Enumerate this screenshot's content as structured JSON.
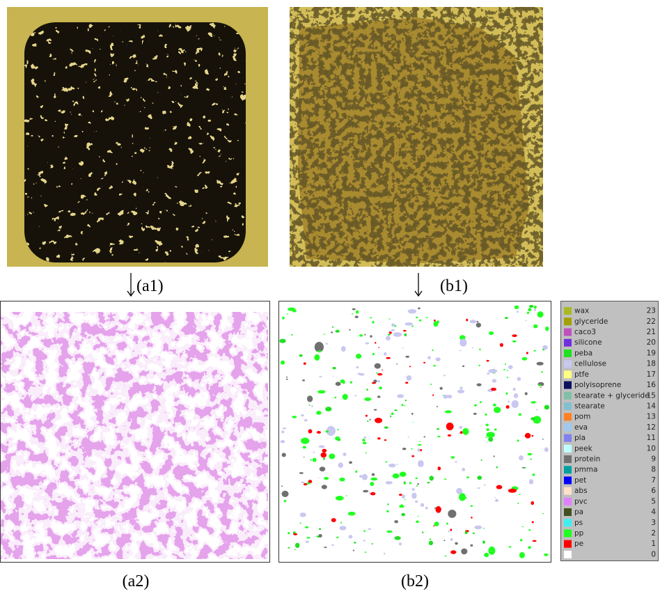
{
  "labels": [
    "(a1)",
    "(b1)",
    "(a2)",
    "(b2)"
  ],
  "legend": {
    "items": [
      {
        "label": "wax",
        "value": 23,
        "color": "#a9b924"
      },
      {
        "label": "glyceride",
        "value": 22,
        "color": "#a3a000"
      },
      {
        "label": "caco3",
        "value": 21,
        "color": "#c050c0"
      },
      {
        "label": "silicone",
        "value": 20,
        "color": "#7030e0"
      },
      {
        "label": "peba",
        "value": 19,
        "color": "#20e020"
      },
      {
        "label": "cellulose",
        "value": 18,
        "color": "#c8c8f0"
      },
      {
        "label": "ptfe",
        "value": 17,
        "color": "#ffff80"
      },
      {
        "label": "polyisoprene",
        "value": 16,
        "color": "#101060"
      },
      {
        "label": "stearate + glyceride",
        "value": 15,
        "color": "#80c0a8"
      },
      {
        "label": "stearate",
        "value": 14,
        "color": "#80c0d0"
      },
      {
        "label": "pom",
        "value": 13,
        "color": "#ff8020"
      },
      {
        "label": "eva",
        "value": 12,
        "color": "#a0c8f0"
      },
      {
        "label": "pla",
        "value": 11,
        "color": "#8080f0"
      },
      {
        "label": "peek",
        "value": 10,
        "color": "#c0ffff"
      },
      {
        "label": "protein",
        "value": 9,
        "color": "#707070"
      },
      {
        "label": "pmma",
        "value": 8,
        "color": "#00a0a0"
      },
      {
        "label": "pet",
        "value": 7,
        "color": "#0000ff"
      },
      {
        "label": "abs",
        "value": 6,
        "color": "#ffe0c8"
      },
      {
        "label": "pvc",
        "value": 5,
        "color": "#e080ff"
      },
      {
        "label": "pa",
        "value": 4,
        "color": "#405020"
      },
      {
        "label": "ps",
        "value": 3,
        "color": "#40f0f0"
      },
      {
        "label": "pp",
        "value": 2,
        "color": "#20ff20"
      },
      {
        "label": "pe",
        "value": 1,
        "color": "#ff0000"
      },
      {
        "value": 0,
        "color": "#ffffff"
      }
    ]
  }
}
